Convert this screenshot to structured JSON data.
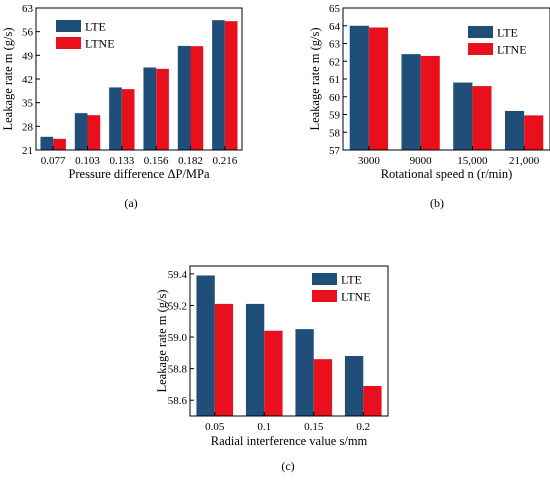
{
  "colors": {
    "LTE": "#1f4e79",
    "LTNE": "#e8101c"
  },
  "chart_data": [
    {
      "type": "bar",
      "panel_label": "(a)",
      "xlabel": "Pressure difference ΔP/MPa",
      "ylabel": "Leakage rate m (g/s)",
      "categories": [
        "0.077",
        "0.103",
        "0.133",
        "0.156",
        "0.182",
        "0.216"
      ],
      "ylim": [
        21,
        63
      ],
      "yticks": [
        21,
        28,
        35,
        42,
        49,
        56,
        63
      ],
      "ytick_labels": [
        "21",
        "28",
        "35",
        "42",
        "49",
        "56",
        "63"
      ],
      "series": [
        {
          "name": "LTE",
          "values": [
            24.9,
            31.9,
            39.5,
            45.4,
            51.8,
            59.4
          ]
        },
        {
          "name": "LTNE",
          "values": [
            24.3,
            31.3,
            39.0,
            45.0,
            51.7,
            59.1
          ]
        }
      ],
      "legend": "top-left",
      "grid": false
    },
    {
      "type": "bar",
      "panel_label": "(b)",
      "xlabel": "Rotational speed n (r/min)",
      "ylabel": "Leakage rate m (g/s)",
      "categories": [
        "3000",
        "9000",
        "15,000",
        "21,000"
      ],
      "ylim": [
        57,
        65
      ],
      "yticks": [
        57,
        58,
        59,
        60,
        61,
        62,
        63,
        64,
        65
      ],
      "ytick_labels": [
        "57",
        "58",
        "59",
        "60",
        "61",
        "62",
        "63",
        "64",
        "65"
      ],
      "series": [
        {
          "name": "LTE",
          "values": [
            64.0,
            62.4,
            60.8,
            59.2
          ]
        },
        {
          "name": "LTNE",
          "values": [
            63.9,
            62.3,
            60.6,
            58.95
          ]
        }
      ],
      "legend": "top-right",
      "grid": false
    },
    {
      "type": "bar",
      "panel_label": "(c)",
      "xlabel": "Radial interference value s/mm",
      "ylabel": "Leakage rate m (g/s)",
      "categories": [
        "0.05",
        "0.1",
        "0.15",
        "0.2"
      ],
      "ylim": [
        58.5,
        59.45
      ],
      "yticks": [
        58.6,
        58.8,
        59.0,
        59.2,
        59.4
      ],
      "ytick_labels": [
        "58.6",
        "58.8",
        "59.0",
        "59.2",
        "59.4"
      ],
      "series": [
        {
          "name": "LTE",
          "values": [
            59.39,
            59.21,
            59.05,
            58.88
          ]
        },
        {
          "name": "LTNE",
          "values": [
            59.21,
            59.04,
            58.86,
            58.69
          ]
        }
      ],
      "legend": "top-right",
      "grid": false
    }
  ]
}
